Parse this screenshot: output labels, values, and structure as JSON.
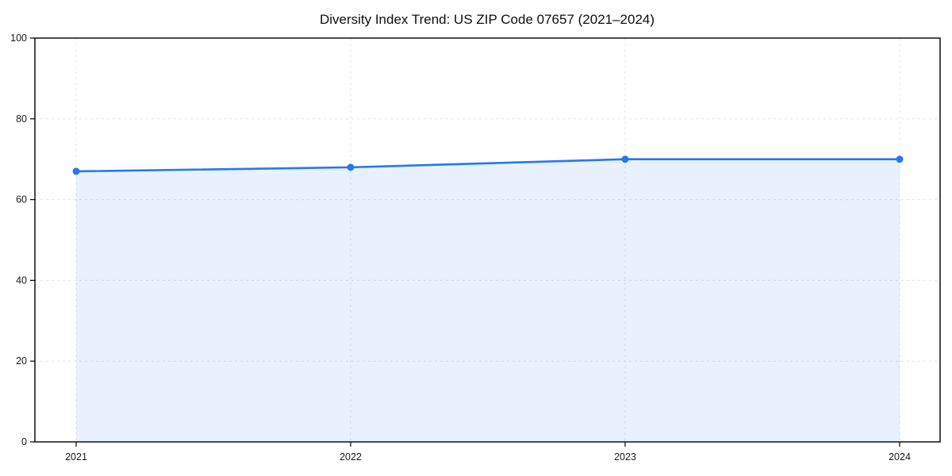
{
  "chart_data": {
    "type": "area",
    "title": "Diversity Index Trend: US ZIP Code 07657 (2021–2024)",
    "x": [
      2021,
      2022,
      2023,
      2024
    ],
    "xticks": [
      "2021",
      "2022",
      "2023",
      "2024"
    ],
    "yticks": [
      0,
      20,
      40,
      60,
      80,
      100
    ],
    "ylim": [
      0,
      100
    ],
    "series": [
      {
        "name": "Diversity Index",
        "values": [
          67,
          68,
          70,
          70
        ]
      }
    ],
    "xlabel": "",
    "ylabel": "",
    "grid": true,
    "legend_position": "none",
    "colors": {
      "line": "#2677f2",
      "marker": "#2677f2",
      "fill": "rgba(38,119,242,0.10)",
      "grid": "#e0e0e0",
      "axis": "#000000",
      "title_text": "#0e0e0e",
      "tick_text": "#1a1a1a",
      "background": "#ffffff"
    }
  }
}
